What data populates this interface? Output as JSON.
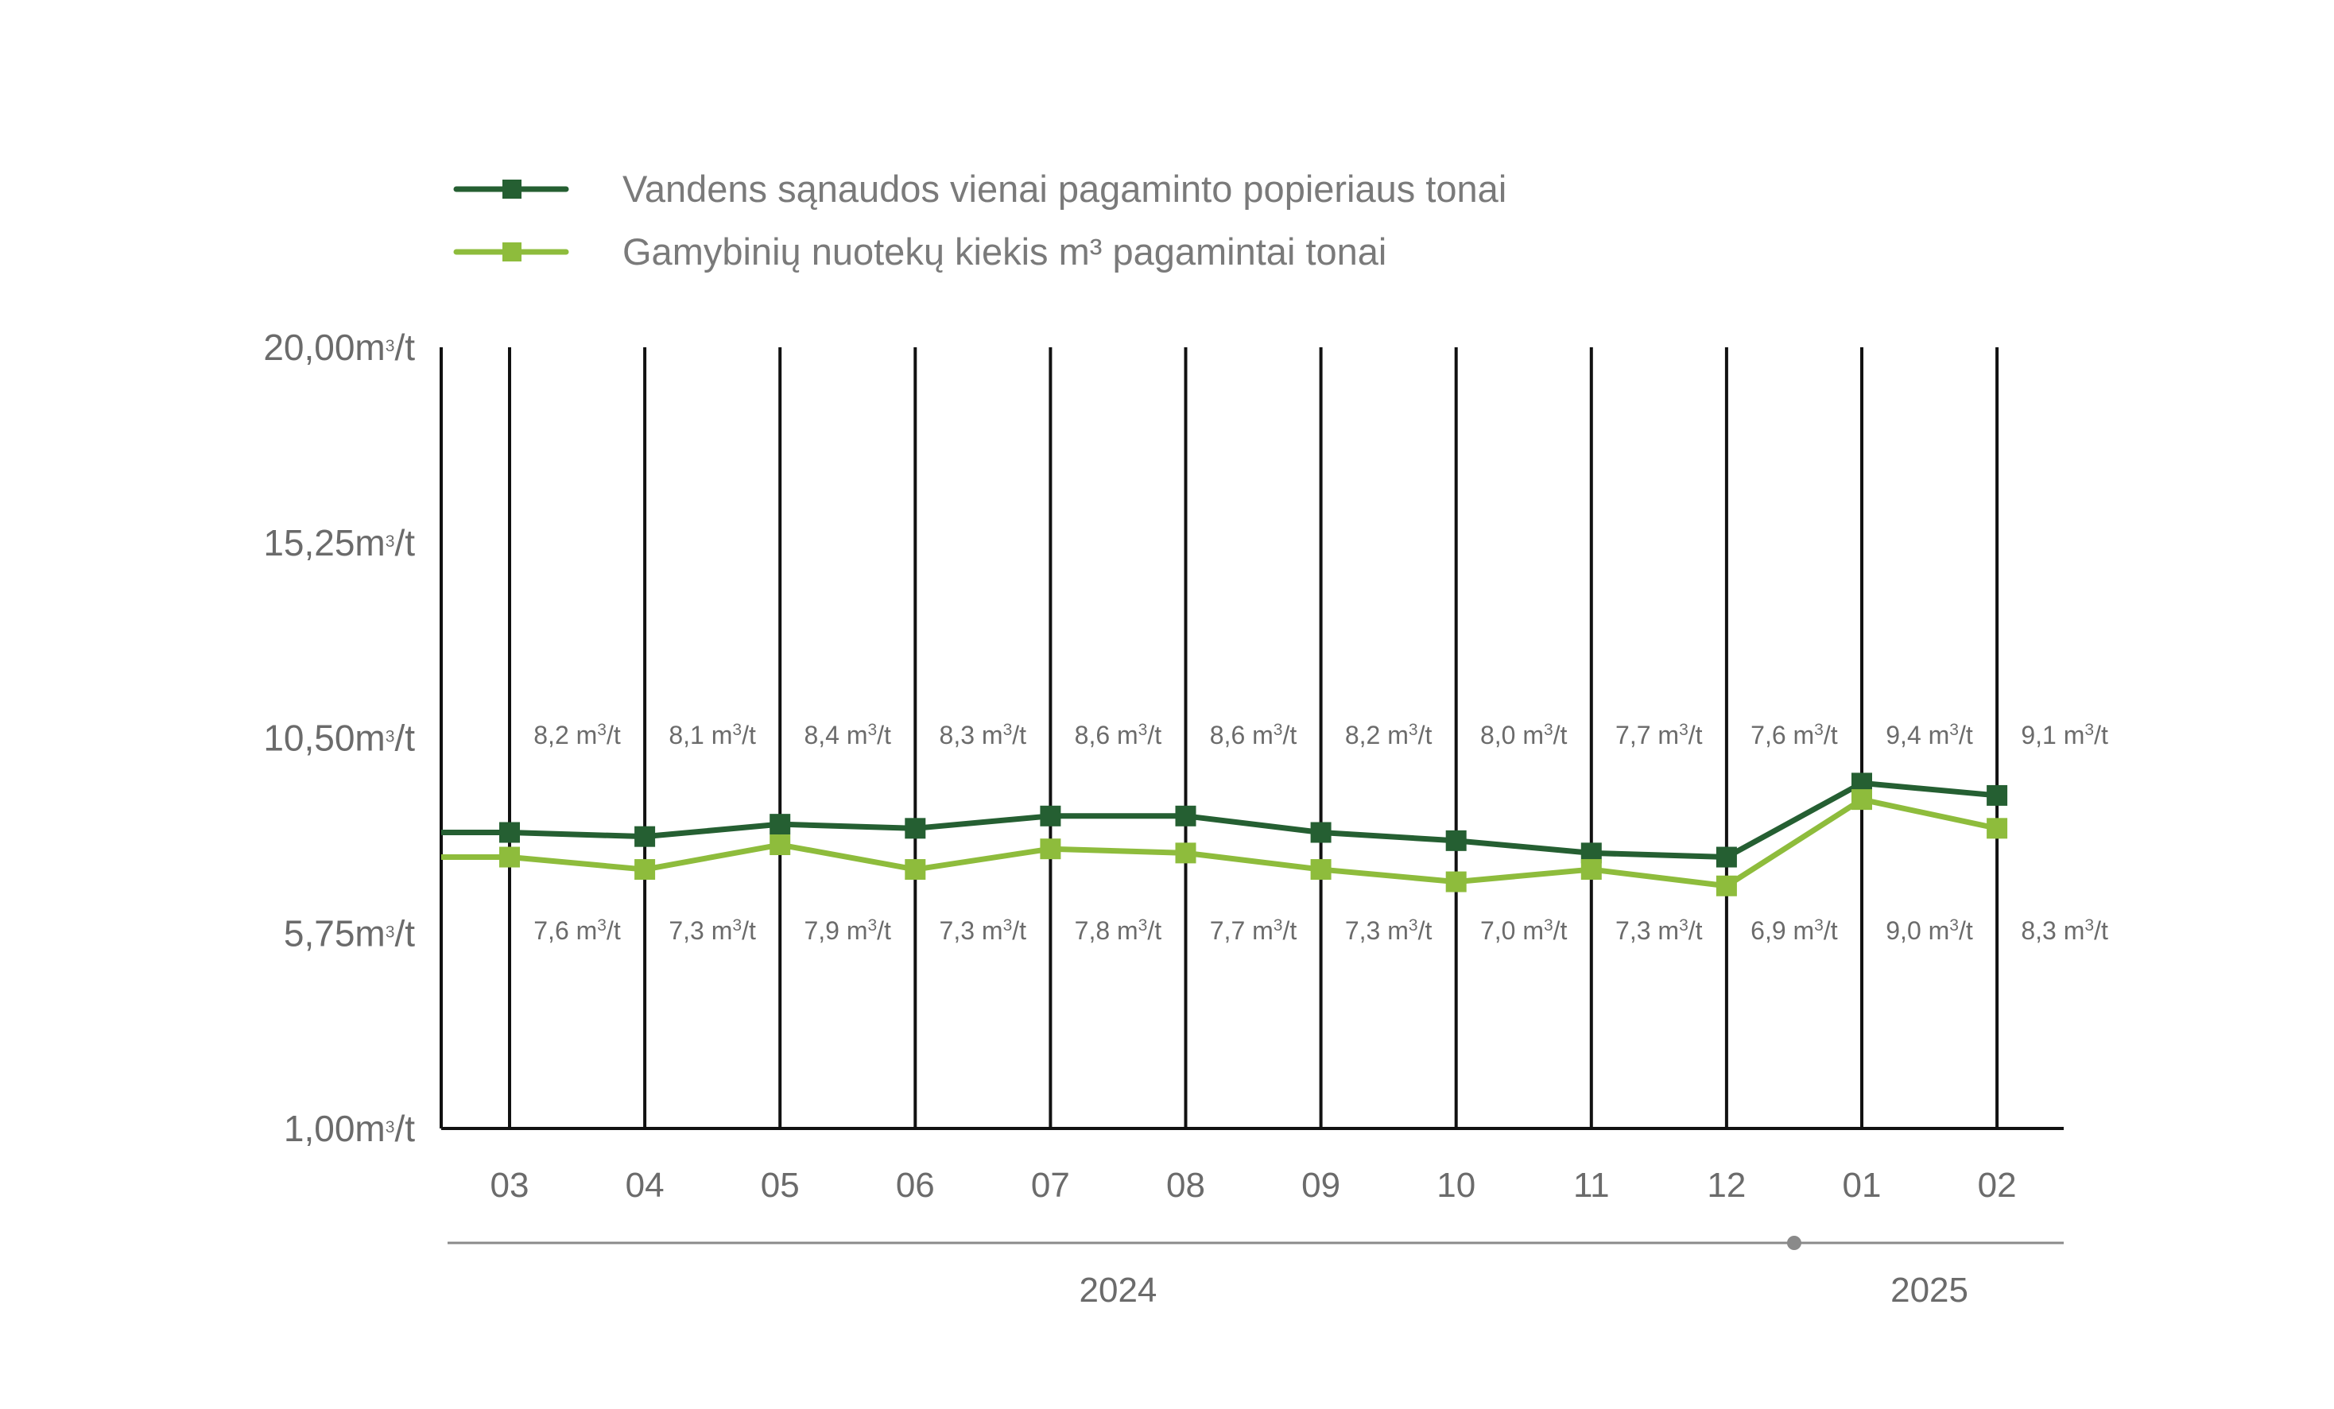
{
  "chart_data": {
    "type": "line",
    "categories": [
      "03",
      "04",
      "05",
      "06",
      "07",
      "08",
      "09",
      "10",
      "11",
      "12",
      "01",
      "02"
    ],
    "years": [
      {
        "label": "2024",
        "from": "03",
        "to": "12"
      },
      {
        "label": "2025",
        "from": "01",
        "to": "02"
      }
    ],
    "series": [
      {
        "name": "Vandens sąnaudos vienai pagaminto popieriaus tonai",
        "color": "#255f32",
        "values": [
          8.2,
          8.1,
          8.4,
          8.3,
          8.6,
          8.6,
          8.2,
          8.0,
          7.7,
          7.6,
          9.4,
          9.1
        ],
        "labels": [
          "8,2 m³/t",
          "8,1 m³/t",
          "8,4 m³/t",
          "8,3 m³/t",
          "8,6 m³/t",
          "8,6 m³/t",
          "8,2 m³/t",
          "8,0 m³/t",
          "7,7 m³/t",
          "7,6 m³/t",
          "9,4 m³/t",
          "9,1 m³/t"
        ],
        "label_position": "above"
      },
      {
        "name": "Gamybinių nuotekų kiekis m³ pagamintai tonai",
        "color": "#8ebc3c",
        "values": [
          7.6,
          7.3,
          7.9,
          7.3,
          7.8,
          7.7,
          7.3,
          7.0,
          7.3,
          6.9,
          9.0,
          8.3
        ],
        "labels": [
          "7,6 m³/t",
          "7,3 m³/t",
          "7,9 m³/t",
          "7,3 m³/t",
          "7,8 m³/t",
          "7,7 m³/t",
          "7,3 m³/t",
          "7,0 m³/t",
          "7,3 m³/t",
          "6,9 m³/t",
          "9,0 m³/t",
          "8,3 m³/t"
        ],
        "label_position": "below"
      }
    ],
    "yticks": [
      1.0,
      5.75,
      10.5,
      15.25,
      20.0
    ],
    "ytick_labels": [
      "1,00m³/t",
      "5,75m³/t",
      "10,50m³/t",
      "15,25m³/t",
      "20,00m³/t"
    ],
    "ylim": [
      1.0,
      20.0
    ],
    "legend_position": "top-left",
    "axis_color": "#111111",
    "timeline_color": "#8a8a8a"
  }
}
